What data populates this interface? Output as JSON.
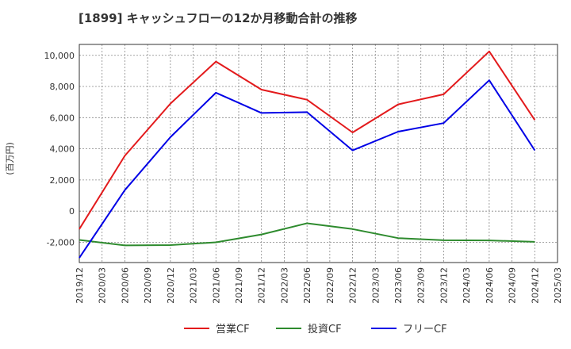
{
  "title": "[1899]  キャッシュフローの12か月移動合計の推移",
  "chart_data": {
    "type": "line",
    "title": "[1899]  キャッシュフローの12か月移動合計の推移",
    "xlabel": "",
    "ylabel": "(百万円)",
    "ylim": [
      -3300,
      10700
    ],
    "yticks": [
      -2000,
      0,
      2000,
      4000,
      6000,
      8000,
      10000
    ],
    "ytick_labels": [
      "-2,000",
      "0",
      "2,000",
      "4,000",
      "6,000",
      "8,000",
      "10,000"
    ],
    "x_ticks": [
      "2019/12",
      "2020/03",
      "2020/06",
      "2020/09",
      "2020/12",
      "2021/03",
      "2021/06",
      "2021/09",
      "2021/12",
      "2022/03",
      "2022/06",
      "2022/09",
      "2022/12",
      "2023/03",
      "2023/06",
      "2023/09",
      "2023/12",
      "2024/03",
      "2024/06",
      "2024/09",
      "2024/12",
      "2025/03"
    ],
    "grid": true,
    "legend_position": "bottom",
    "x": [
      "2019/12",
      "2020/06",
      "2020/12",
      "2021/06",
      "2021/12",
      "2022/06",
      "2022/12",
      "2023/06",
      "2023/12",
      "2024/06",
      "2024/12"
    ],
    "series": [
      {
        "name": "営業CF",
        "color": "#e31a1c",
        "values": [
          -1150,
          3550,
          6900,
          9600,
          7800,
          7150,
          5050,
          6850,
          7500,
          10250,
          5850
        ]
      },
      {
        "name": "投資CF",
        "color": "#2e8b2e",
        "values": [
          -1850,
          -2200,
          -2180,
          -2000,
          -1500,
          -780,
          -1150,
          -1730,
          -1870,
          -1880,
          -1970
        ]
      },
      {
        "name": "フリーCF",
        "color": "#0000e6",
        "values": [
          -3000,
          1350,
          4750,
          7600,
          6300,
          6350,
          3900,
          5100,
          5650,
          8400,
          3900
        ]
      }
    ]
  }
}
